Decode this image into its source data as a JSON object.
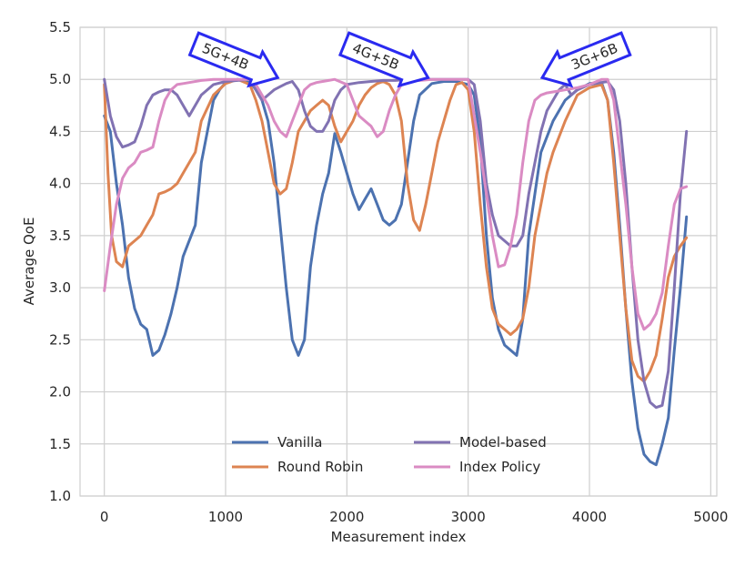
{
  "chart_data": {
    "type": "line",
    "xlabel": "Measurement index",
    "ylabel": "Average QoE",
    "xlim": [
      -200,
      5050
    ],
    "ylim": [
      1.0,
      5.5
    ],
    "xticks": [
      0,
      1000,
      2000,
      3000,
      4000,
      5000
    ],
    "yticks": [
      1.0,
      1.5,
      2.0,
      2.5,
      3.0,
      3.5,
      4.0,
      4.5,
      5.0,
      5.5
    ],
    "grid": true,
    "legend_position": "bottom-center",
    "annotations": [
      {
        "text": "5G+4B",
        "x": 1040,
        "y": 5.2,
        "direction": "down-right"
      },
      {
        "text": "4G+5B",
        "x": 2280,
        "y": 5.2,
        "direction": "down-right"
      },
      {
        "text": "3G+6B",
        "x": 4000,
        "y": 5.2,
        "direction": "down-left"
      }
    ],
    "series": [
      {
        "name": "Vanilla",
        "color": "#4c72b0",
        "x": [
          0,
          50,
          100,
          150,
          200,
          250,
          300,
          350,
          400,
          450,
          500,
          550,
          600,
          650,
          700,
          750,
          800,
          850,
          900,
          950,
          1000,
          1100,
          1200,
          1250,
          1300,
          1350,
          1400,
          1450,
          1500,
          1550,
          1600,
          1650,
          1700,
          1750,
          1800,
          1850,
          1900,
          1950,
          2000,
          2050,
          2100,
          2150,
          2200,
          2250,
          2300,
          2350,
          2400,
          2450,
          2500,
          2550,
          2600,
          2700,
          2800,
          2900,
          3000,
          3050,
          3100,
          3150,
          3200,
          3250,
          3300,
          3350,
          3400,
          3450,
          3500,
          3600,
          3700,
          3800,
          3900,
          4000,
          4100,
          4150,
          4200,
          4250,
          4300,
          4350,
          4400,
          4450,
          4500,
          4550,
          4600,
          4650,
          4700,
          4750,
          4800
        ],
        "y": [
          4.65,
          4.5,
          4.0,
          3.6,
          3.1,
          2.8,
          2.65,
          2.6,
          2.35,
          2.4,
          2.55,
          2.75,
          3.0,
          3.3,
          3.45,
          3.6,
          4.2,
          4.5,
          4.8,
          4.9,
          4.97,
          5.0,
          4.98,
          4.9,
          4.8,
          4.6,
          4.2,
          3.6,
          3.0,
          2.5,
          2.35,
          2.5,
          3.2,
          3.6,
          3.9,
          4.1,
          4.48,
          4.3,
          4.1,
          3.9,
          3.75,
          3.85,
          3.95,
          3.8,
          3.65,
          3.6,
          3.65,
          3.8,
          4.2,
          4.6,
          4.85,
          4.96,
          4.98,
          4.98,
          4.95,
          4.85,
          4.4,
          3.5,
          2.9,
          2.6,
          2.45,
          2.4,
          2.35,
          2.7,
          3.5,
          4.3,
          4.6,
          4.8,
          4.9,
          4.96,
          4.97,
          4.8,
          4.3,
          3.6,
          2.8,
          2.1,
          1.65,
          1.4,
          1.33,
          1.3,
          1.5,
          1.75,
          2.4,
          3.0,
          3.68
        ]
      },
      {
        "name": "Round Robin",
        "color": "#dd8452",
        "x": [
          0,
          30,
          60,
          100,
          150,
          200,
          250,
          300,
          350,
          400,
          450,
          500,
          550,
          600,
          650,
          700,
          750,
          800,
          900,
          1000,
          1100,
          1200,
          1250,
          1300,
          1350,
          1400,
          1450,
          1500,
          1550,
          1600,
          1650,
          1700,
          1750,
          1800,
          1850,
          1900,
          1950,
          2000,
          2050,
          2100,
          2150,
          2200,
          2250,
          2300,
          2350,
          2400,
          2450,
          2500,
          2550,
          2600,
          2650,
          2700,
          2750,
          2800,
          2850,
          2900,
          2950,
          3000,
          3050,
          3100,
          3150,
          3200,
          3250,
          3300,
          3350,
          3400,
          3450,
          3500,
          3550,
          3600,
          3650,
          3700,
          3800,
          3900,
          4000,
          4100,
          4150,
          4200,
          4250,
          4300,
          4350,
          4400,
          4450,
          4500,
          4550,
          4600,
          4650,
          4700,
          4750,
          4800
        ],
        "y": [
          4.95,
          4.1,
          3.5,
          3.25,
          3.2,
          3.4,
          3.45,
          3.5,
          3.6,
          3.7,
          3.9,
          3.92,
          3.95,
          4.0,
          4.1,
          4.2,
          4.3,
          4.6,
          4.85,
          4.96,
          5.0,
          4.95,
          4.8,
          4.6,
          4.3,
          4.0,
          3.9,
          3.95,
          4.2,
          4.5,
          4.6,
          4.7,
          4.75,
          4.8,
          4.75,
          4.55,
          4.4,
          4.5,
          4.6,
          4.75,
          4.85,
          4.92,
          4.96,
          4.98,
          4.95,
          4.85,
          4.6,
          4.0,
          3.65,
          3.55,
          3.8,
          4.1,
          4.4,
          4.6,
          4.8,
          4.95,
          4.97,
          4.9,
          4.5,
          3.8,
          3.2,
          2.8,
          2.65,
          2.6,
          2.55,
          2.6,
          2.7,
          3.0,
          3.5,
          3.8,
          4.1,
          4.3,
          4.6,
          4.85,
          4.92,
          4.95,
          4.8,
          4.2,
          3.5,
          2.8,
          2.3,
          2.15,
          2.1,
          2.2,
          2.35,
          2.7,
          3.1,
          3.3,
          3.4,
          3.48
        ]
      },
      {
        "name": "Model-based",
        "color": "#8172b2",
        "x": [
          0,
          50,
          100,
          150,
          200,
          250,
          300,
          350,
          400,
          450,
          500,
          550,
          600,
          650,
          700,
          750,
          800,
          900,
          1000,
          1100,
          1200,
          1250,
          1300,
          1350,
          1400,
          1450,
          1500,
          1550,
          1600,
          1650,
          1700,
          1750,
          1800,
          1850,
          1900,
          1950,
          2000,
          2100,
          2200,
          2300,
          2400,
          2500,
          2600,
          2700,
          2800,
          2900,
          3000,
          3050,
          3100,
          3150,
          3200,
          3250,
          3300,
          3350,
          3400,
          3450,
          3500,
          3550,
          3600,
          3650,
          3700,
          3750,
          3800,
          3850,
          3900,
          4000,
          4100,
          4150,
          4200,
          4250,
          4300,
          4350,
          4400,
          4450,
          4500,
          4550,
          4600,
          4650,
          4700,
          4750,
          4800
        ],
        "y": [
          5.0,
          4.65,
          4.45,
          4.35,
          4.37,
          4.4,
          4.55,
          4.75,
          4.85,
          4.88,
          4.9,
          4.9,
          4.85,
          4.75,
          4.65,
          4.75,
          4.85,
          4.95,
          4.98,
          4.99,
          5.0,
          4.9,
          4.8,
          4.85,
          4.9,
          4.93,
          4.96,
          4.98,
          4.9,
          4.7,
          4.55,
          4.5,
          4.5,
          4.6,
          4.8,
          4.9,
          4.95,
          4.97,
          4.98,
          4.99,
          4.99,
          5.0,
          5.0,
          5.0,
          5.0,
          5.0,
          5.0,
          4.95,
          4.6,
          4.0,
          3.7,
          3.5,
          3.45,
          3.4,
          3.4,
          3.5,
          3.9,
          4.2,
          4.5,
          4.7,
          4.8,
          4.9,
          4.95,
          4.85,
          4.9,
          4.95,
          4.97,
          4.98,
          4.9,
          4.6,
          4.0,
          3.2,
          2.5,
          2.1,
          1.9,
          1.85,
          1.87,
          2.2,
          3.0,
          3.9,
          4.5
        ]
      },
      {
        "name": "Index Policy",
        "color": "#da8bc3",
        "x": [
          0,
          50,
          100,
          150,
          200,
          250,
          300,
          350,
          400,
          450,
          500,
          550,
          600,
          650,
          700,
          800,
          900,
          1000,
          1100,
          1200,
          1250,
          1300,
          1350,
          1400,
          1450,
          1500,
          1550,
          1600,
          1650,
          1700,
          1750,
          1800,
          1850,
          1900,
          2000,
          2050,
          2100,
          2150,
          2200,
          2250,
          2300,
          2350,
          2400,
          2450,
          2500,
          2600,
          2700,
          2800,
          2900,
          3000,
          3100,
          3150,
          3200,
          3250,
          3300,
          3350,
          3400,
          3450,
          3500,
          3550,
          3600,
          3650,
          3700,
          3800,
          3900,
          4000,
          4100,
          4150,
          4200,
          4250,
          4300,
          4350,
          4400,
          4450,
          4500,
          4550,
          4600,
          4650,
          4700,
          4750,
          4800
        ],
        "y": [
          2.97,
          3.4,
          3.8,
          4.05,
          4.15,
          4.2,
          4.3,
          4.32,
          4.35,
          4.6,
          4.8,
          4.9,
          4.95,
          4.96,
          4.97,
          4.99,
          5.0,
          5.0,
          5.0,
          5.0,
          4.95,
          4.85,
          4.75,
          4.6,
          4.5,
          4.45,
          4.6,
          4.75,
          4.9,
          4.95,
          4.97,
          4.98,
          4.99,
          5.0,
          4.95,
          4.8,
          4.65,
          4.6,
          4.55,
          4.45,
          4.5,
          4.7,
          4.85,
          4.95,
          4.98,
          4.99,
          5.0,
          5.0,
          5.0,
          5.0,
          4.3,
          3.9,
          3.5,
          3.2,
          3.22,
          3.4,
          3.7,
          4.2,
          4.6,
          4.8,
          4.85,
          4.87,
          4.88,
          4.9,
          4.92,
          4.95,
          5.0,
          5.0,
          4.8,
          4.3,
          3.8,
          3.2,
          2.75,
          2.6,
          2.65,
          2.75,
          2.95,
          3.4,
          3.8,
          3.95,
          3.97
        ]
      }
    ]
  }
}
